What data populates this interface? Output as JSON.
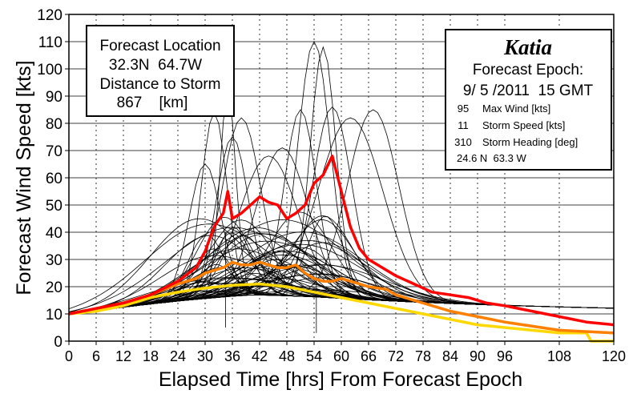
{
  "chart_data": {
    "type": "line",
    "xlabel": "Elapsed Time [hrs] From Forecast Epoch",
    "ylabel": "Forecast Wind Speed [kts]",
    "xlim": [
      0,
      120
    ],
    "ylim": [
      0,
      120
    ],
    "x_ticks": [
      "0",
      "6",
      "12",
      "18",
      "24",
      "30",
      "36",
      "42",
      "48",
      "54",
      "60",
      "66",
      "72",
      "78",
      "84",
      "90",
      "96",
      "108",
      "120"
    ],
    "y_ticks": [
      "0",
      "10",
      "20",
      "30",
      "40",
      "50",
      "60",
      "70",
      "80",
      "90",
      "100",
      "110",
      "120"
    ],
    "location_box": {
      "line1": "Forecast Location",
      "line2": "32.3N  64.7W",
      "line3": "Distance to Storm",
      "line4": "867    [km]"
    },
    "storm_box": {
      "name": "Katia",
      "epoch_label": "Forecast Epoch:",
      "epoch_value": "9/ 5 /2011  15 GMT",
      "max_wind_value": "95",
      "max_wind_label": "Max Wind [kts]",
      "speed_value": "11",
      "speed_label": "Storm Speed [kts]",
      "heading_value": "310",
      "heading_label": "Storm Heading [deg]",
      "position": "24.6 N  63.3 W"
    },
    "series": [
      {
        "color": "#ff0000",
        "x": [
          0,
          6,
          12,
          18,
          24,
          28,
          30,
          32,
          34,
          35,
          36,
          38,
          40,
          42,
          44,
          46,
          48,
          50,
          52,
          54,
          56,
          58,
          60,
          62,
          64,
          66,
          68,
          70,
          72,
          76,
          80,
          84,
          88,
          92,
          96,
          102,
          108,
          114,
          120
        ],
        "values": [
          10,
          12,
          14,
          17,
          22,
          27,
          33,
          42,
          47,
          55,
          45,
          47,
          50,
          53,
          51,
          50,
          45,
          47,
          50,
          58,
          61,
          68,
          55,
          42,
          34,
          30,
          28,
          26,
          24,
          21,
          18,
          17,
          16,
          14,
          13,
          11,
          9,
          7,
          6
        ]
      },
      {
        "color": "#ff7f00",
        "x": [
          0,
          6,
          12,
          18,
          24,
          28,
          30,
          32,
          34,
          36,
          38,
          40,
          42,
          44,
          46,
          48,
          50,
          52,
          54,
          56,
          58,
          60,
          62,
          64,
          66,
          70,
          72,
          78,
          84,
          90,
          96,
          108,
          120
        ],
        "values": [
          10,
          12,
          14,
          17,
          21,
          23,
          25,
          26,
          27,
          29,
          28,
          28,
          29,
          28,
          27,
          27,
          28,
          25,
          23,
          22,
          22,
          23,
          22,
          21,
          20,
          19,
          17,
          14,
          11,
          9,
          7,
          4,
          3
        ]
      },
      {
        "color": "#ffd800",
        "x": [
          0,
          6,
          12,
          18,
          24,
          30,
          36,
          42,
          48,
          54,
          60,
          66,
          72,
          78,
          84,
          90,
          96,
          102,
          108,
          114,
          115,
          120
        ],
        "values": [
          10,
          11,
          13,
          16,
          18,
          19.5,
          20.5,
          21,
          20,
          18,
          16,
          14,
          12,
          10,
          8,
          6,
          5,
          4,
          3,
          3,
          0,
          0
        ]
      }
    ]
  }
}
